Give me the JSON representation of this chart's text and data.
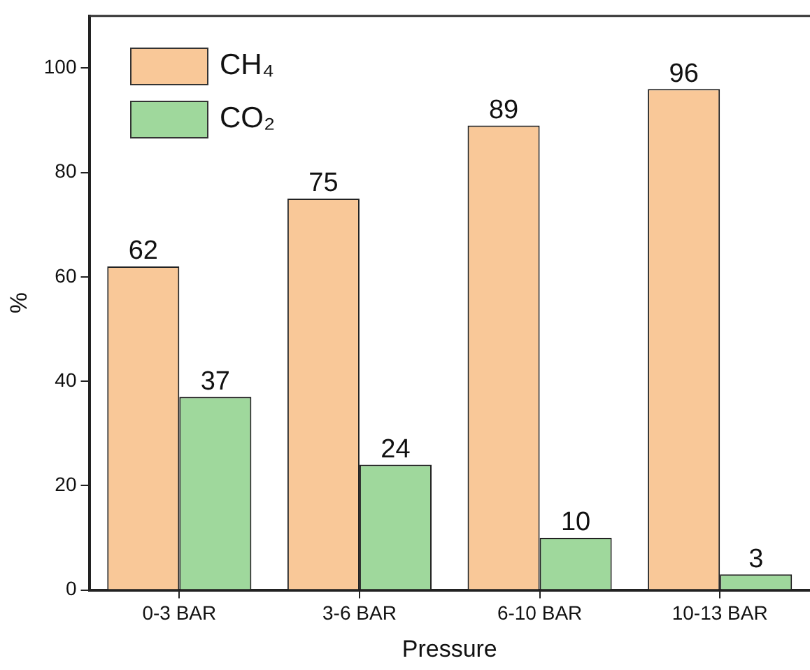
{
  "chart_data": {
    "type": "bar",
    "xlabel": "Pressure",
    "ylabel": "%",
    "categories": [
      "0-3 BAR",
      "3-6 BAR",
      "6-10 BAR",
      "10-13 BAR"
    ],
    "series": [
      {
        "name": "CH₄",
        "color": "#f9c898",
        "values": [
          62,
          75,
          89,
          96
        ]
      },
      {
        "name": "CO₂",
        "color": "#9fd89c",
        "values": [
          37,
          24,
          10,
          3
        ]
      }
    ],
    "ylim": [
      0,
      110
    ],
    "yticks": [
      0,
      20,
      40,
      60,
      80,
      100
    ],
    "grid": false,
    "legend": "top left",
    "data_labels": true
  }
}
